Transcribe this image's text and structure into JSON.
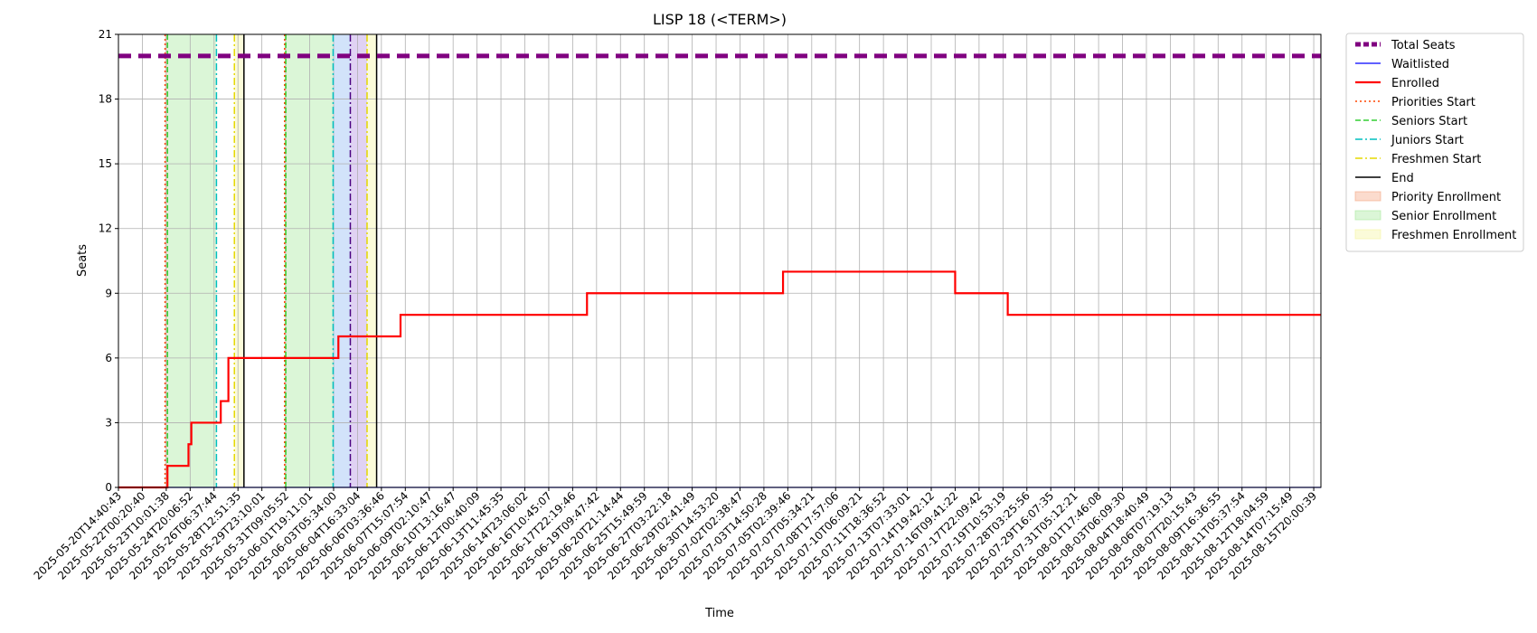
{
  "chart_data": {
    "type": "line",
    "title": "LISP 18 (<TERM>)",
    "xlabel": "Time",
    "ylabel": "Seats",
    "ylim": [
      0,
      21
    ],
    "yticks": [
      0,
      3,
      6,
      9,
      12,
      15,
      18,
      21
    ],
    "grid": true,
    "legend_position": "outside-top-right",
    "x_ticks": [
      "2025-05-20T14:40:43",
      "2025-05-22T00:20:40",
      "2025-05-23T10:01:38",
      "2025-05-24T20:06:52",
      "2025-05-26T06:37:44",
      "2025-05-28T12:51:35",
      "2025-05-29T23:10:01",
      "2025-05-31T09:05:52",
      "2025-06-01T19:11:01",
      "2025-06-03T05:34:00",
      "2025-06-04T16:33:04",
      "2025-06-06T03:36:46",
      "2025-06-07T15:07:54",
      "2025-06-09T02:10:47",
      "2025-06-10T13:16:47",
      "2025-06-12T00:40:09",
      "2025-06-13T11:45:35",
      "2025-06-14T23:06:02",
      "2025-06-16T10:45:07",
      "2025-06-17T22:19:46",
      "2025-06-19T09:47:42",
      "2025-06-20T21:14:44",
      "2025-06-25T15:49:59",
      "2025-06-27T03:22:18",
      "2025-06-29T02:41:49",
      "2025-06-30T14:53:20",
      "2025-07-02T02:38:47",
      "2025-07-03T14:50:28",
      "2025-07-05T02:39:46",
      "2025-07-07T05:34:21",
      "2025-07-08T17:57:06",
      "2025-07-10T06:09:21",
      "2025-07-11T18:36:52",
      "2025-07-13T07:33:01",
      "2025-07-14T19:42:12",
      "2025-07-16T09:41:22",
      "2025-07-17T22:09:42",
      "2025-07-19T10:53:19",
      "2025-07-28T03:25:56",
      "2025-07-29T16:07:35",
      "2025-07-31T05:12:21",
      "2025-08-01T17:46:08",
      "2025-08-03T06:09:30",
      "2025-08-04T18:40:49",
      "2025-08-06T07:19:13",
      "2025-08-07T20:15:43",
      "2025-08-09T16:36:55",
      "2025-08-11T05:37:54",
      "2025-08-12T18:04:59",
      "2025-08-14T07:15:49",
      "2025-08-15T20:00:39"
    ],
    "x_range": [
      0,
      50.3
    ],
    "series": [
      {
        "name": "Total Seats",
        "color": "#800080",
        "style": "dashed-thick",
        "points": [
          [
            0,
            20
          ],
          [
            50.3,
            20
          ]
        ]
      },
      {
        "name": "Waitlisted",
        "color": "#0000ff",
        "style": "solid-thin",
        "points": [
          [
            0,
            0
          ],
          [
            50.3,
            0
          ]
        ]
      },
      {
        "name": "Enrolled",
        "color": "#ff0000",
        "style": "step",
        "points": [
          [
            0,
            0
          ],
          [
            2.05,
            1
          ],
          [
            2.93,
            2
          ],
          [
            3.05,
            3
          ],
          [
            4.28,
            4
          ],
          [
            4.6,
            6
          ],
          [
            9.2,
            7
          ],
          [
            11.8,
            8
          ],
          [
            19.6,
            9
          ],
          [
            27.8,
            10
          ],
          [
            35.0,
            9
          ],
          [
            37.2,
            8
          ],
          [
            50.3,
            8
          ]
        ]
      }
    ],
    "markers": [
      {
        "name": "Priorities Start",
        "color": "#ff4500",
        "style": "dotted",
        "x": [
          1.95,
          6.95
        ]
      },
      {
        "name": "Seniors Start",
        "color": "#32cd32",
        "style": "dashed",
        "x": [
          2.05,
          7.0
        ]
      },
      {
        "name": "Juniors Start",
        "color": "#00bfbf",
        "style": "dashdot",
        "x": [
          4.1,
          8.98
        ]
      },
      {
        "name": "Freshmen Start",
        "color": "#e5d800",
        "style": "dashdot",
        "x": [
          4.85,
          10.4
        ]
      },
      {
        "name": "End",
        "color": "#000000",
        "style": "solid",
        "x": [
          5.25,
          10.8
        ]
      }
    ],
    "extra_lines": [
      {
        "color": "#4b0082",
        "style": "dashdot",
        "x": 9.7
      }
    ],
    "regions": [
      {
        "name": "Priority Enrollment",
        "color": "#f4a582",
        "ranges": [
          [
            1.95,
            2.05
          ],
          [
            6.95,
            7.0
          ]
        ]
      },
      {
        "name": "Senior Enrollment",
        "color": "#a6e89b",
        "ranges": [
          [
            2.05,
            4.1
          ],
          [
            7.0,
            8.98
          ]
        ]
      },
      {
        "name": "Freshmen Enrollment",
        "color": "#f5f5a0",
        "ranges": [
          [
            4.85,
            5.25
          ],
          [
            10.4,
            10.8
          ]
        ]
      }
    ],
    "extra_regions": [
      {
        "color": "#a6c8f5",
        "range": [
          8.98,
          9.7
        ]
      },
      {
        "color": "#c2a6e8",
        "range": [
          9.7,
          10.4
        ]
      }
    ]
  }
}
